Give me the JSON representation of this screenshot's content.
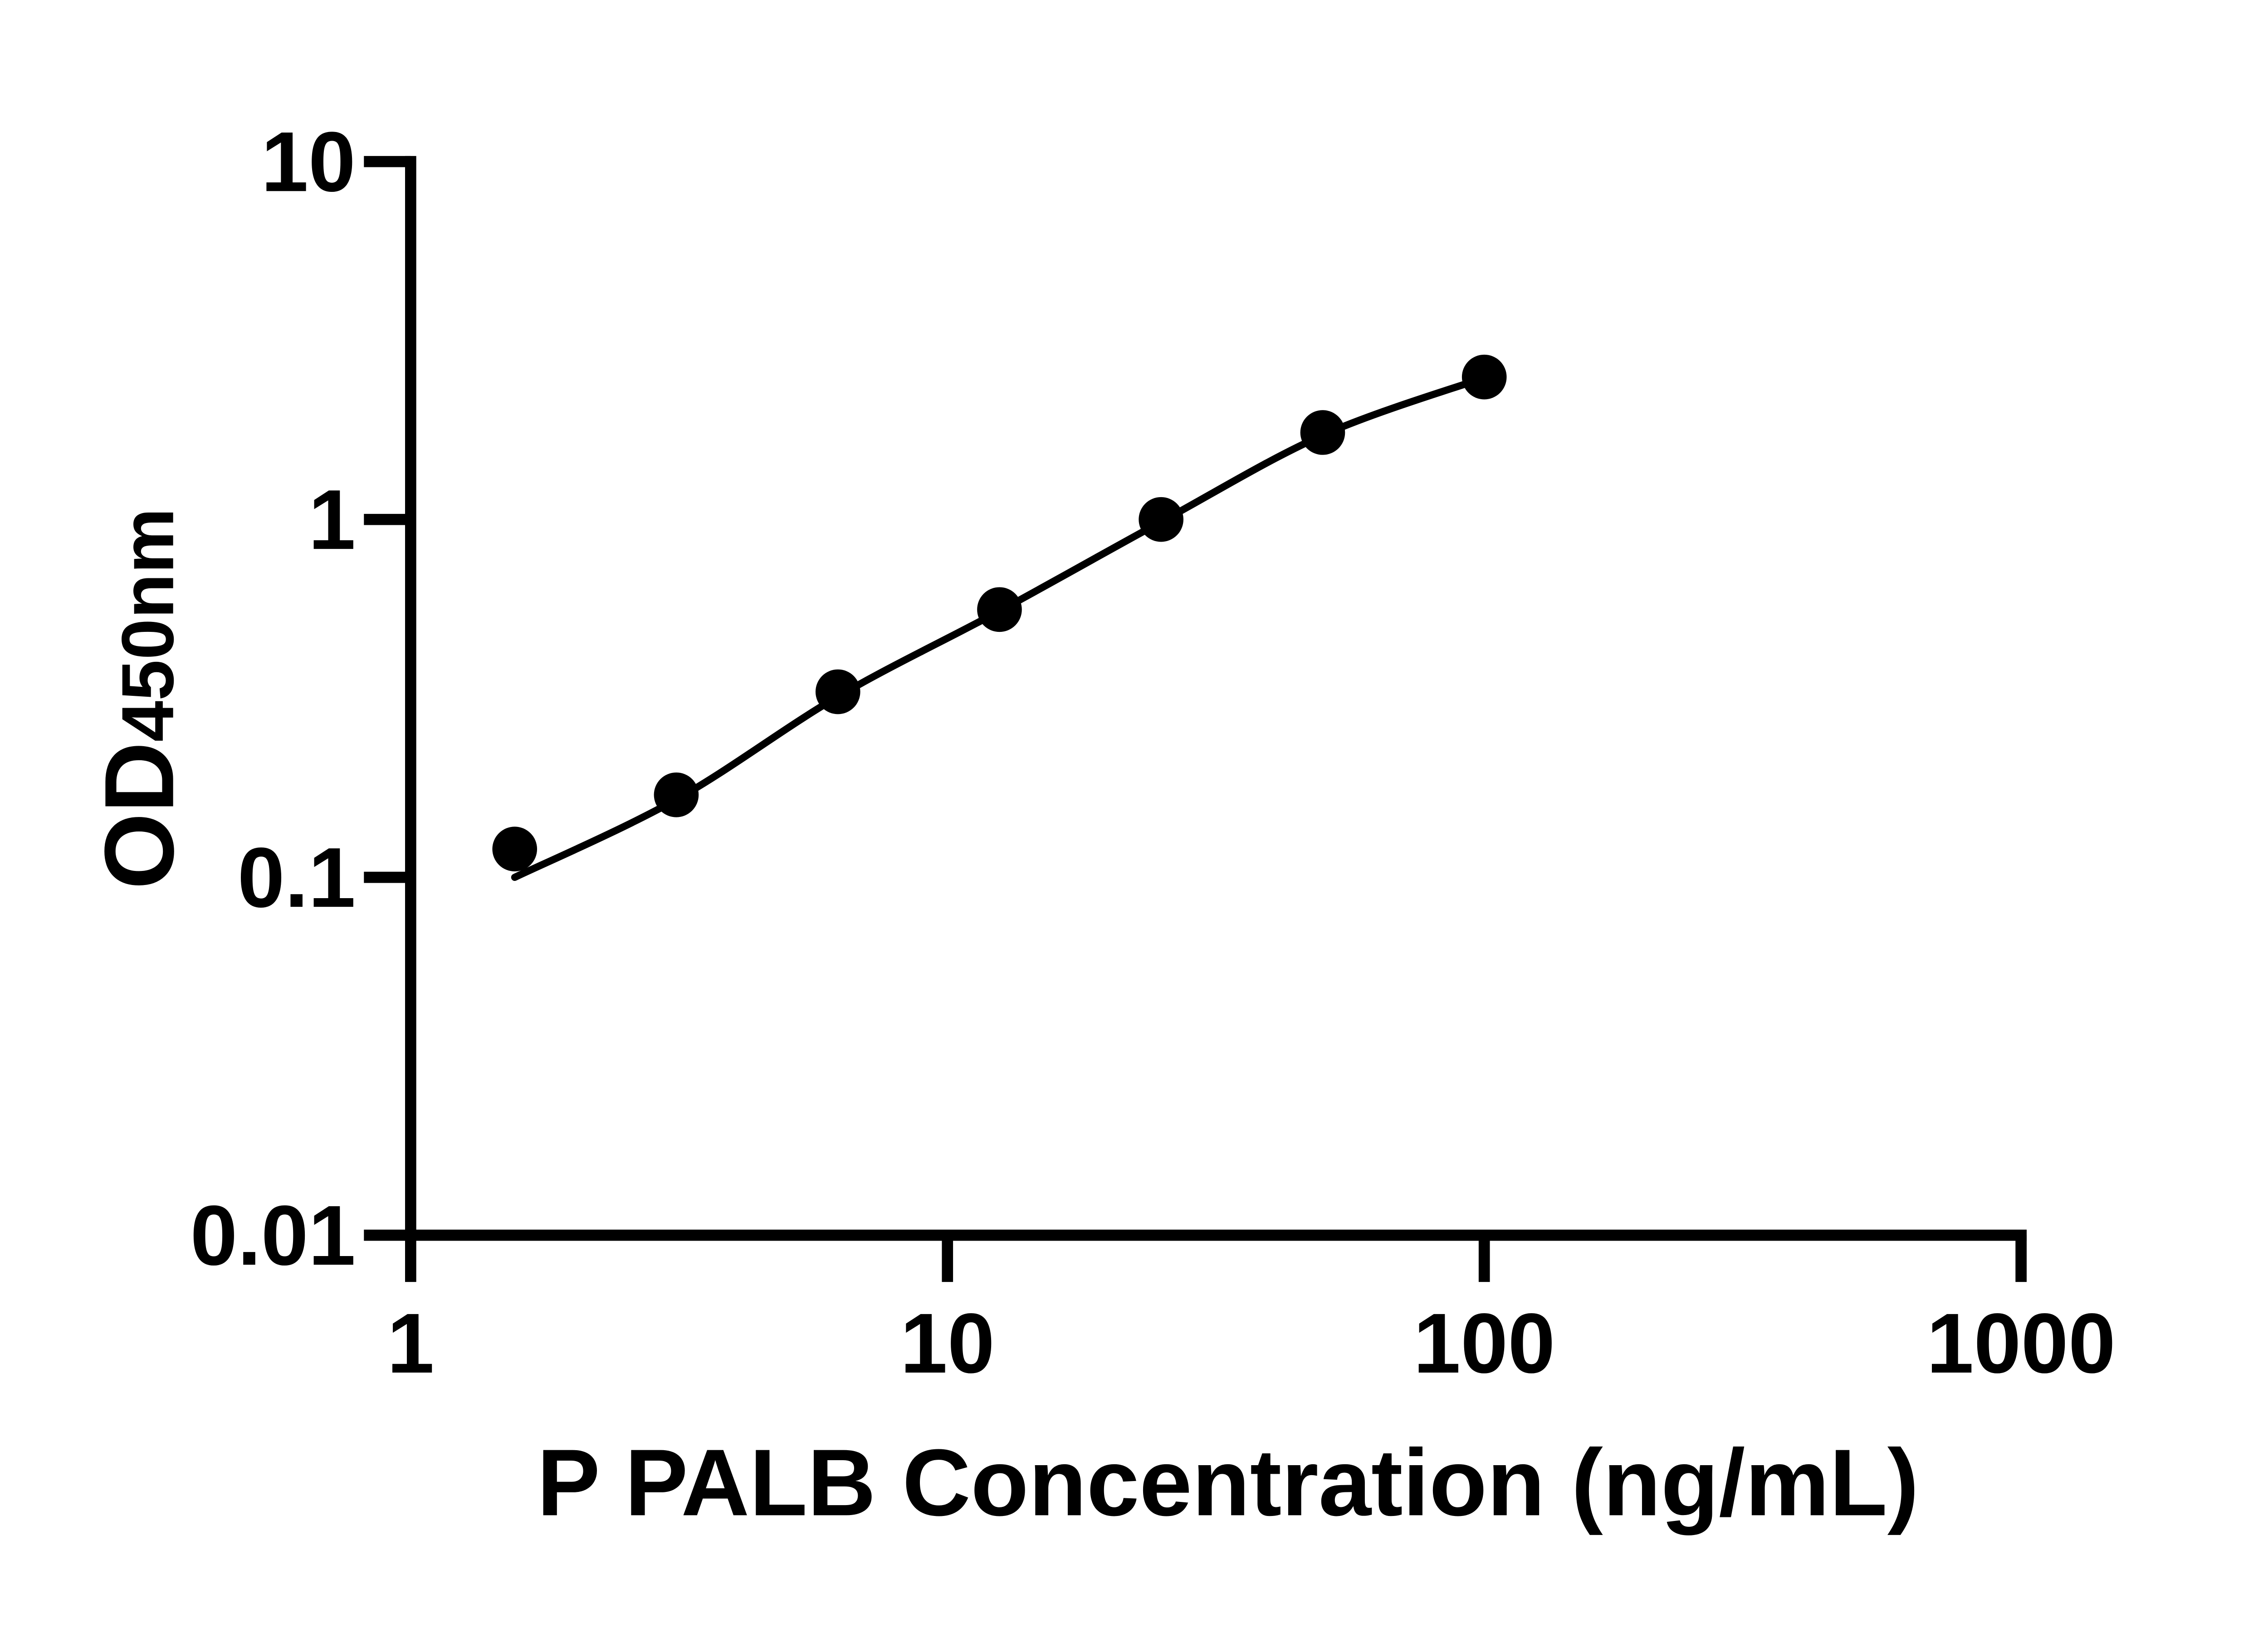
{
  "chart_data": {
    "type": "scatter",
    "title": "",
    "xlabel": "P PALB Concentration (ng/mL)",
    "ylabel": "OD",
    "ylabel_subscript": "450nm",
    "x_scale": "log10",
    "y_scale": "log10",
    "xlim": [
      1,
      1000
    ],
    "ylim": [
      0.01,
      10
    ],
    "x_ticks": [
      1,
      10,
      100,
      1000
    ],
    "x_tick_labels": [
      "1",
      "10",
      "100",
      "1000"
    ],
    "y_ticks": [
      10,
      1,
      0.1,
      0.01
    ],
    "y_tick_labels": [
      "10",
      "1",
      "0.1",
      "0.01"
    ],
    "grid": false,
    "legend": false,
    "background_color": "#ffffff",
    "axis_color": "#000000",
    "marker_color": "#000000",
    "curve_color": "#000000",
    "series": [
      {
        "name": "standard-points",
        "type": "scatter",
        "marker": "circle",
        "x": [
          1.5625,
          3.125,
          6.25,
          12.5,
          25,
          50,
          100
        ],
        "y": [
          0.12,
          0.17,
          0.33,
          0.56,
          1.0,
          1.75,
          2.5
        ]
      },
      {
        "name": "4pl-fit-curve",
        "type": "line",
        "x": [
          1.5625,
          3.125,
          6.25,
          12.5,
          25,
          50,
          100
        ],
        "y": [
          0.1,
          0.165,
          0.32,
          0.555,
          0.985,
          1.72,
          2.49
        ]
      }
    ]
  }
}
